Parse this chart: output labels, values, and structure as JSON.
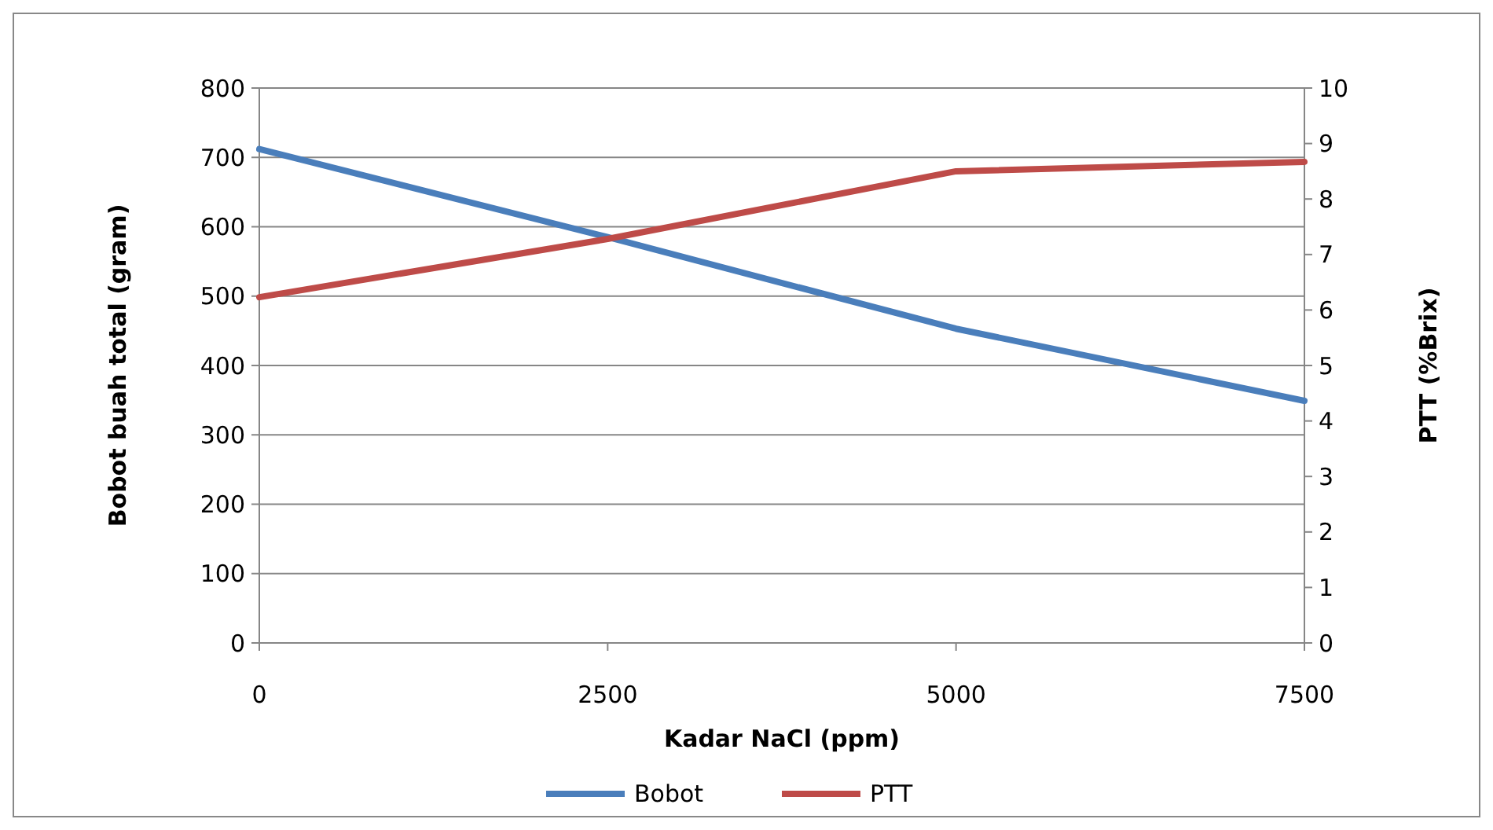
{
  "chart_data": {
    "type": "line",
    "xlabel": "Kadar NaCl (ppm)",
    "ylabel": "Bobot buah total (gram)",
    "y2label": "PTT (%Brix)",
    "x": [
      0,
      2500,
      5000,
      7500
    ],
    "series": [
      {
        "name": "Bobot",
        "color": "#4a7ebb",
        "values": [
          712,
          585,
          453,
          349
        ]
      },
      {
        "name": "PTT",
        "color": "#be4b48",
        "values": [
          6.23,
          7.28,
          8.5,
          8.67
        ],
        "axis": "y2"
      }
    ],
    "xlim": [
      0,
      7500
    ],
    "xticks": [
      0,
      2500,
      5000,
      7500
    ],
    "ylim": [
      0,
      800
    ],
    "yticks": [
      0,
      100,
      200,
      300,
      400,
      500,
      600,
      700,
      800
    ],
    "y2lim": [
      0,
      10
    ],
    "y2ticks": [
      0,
      1,
      2,
      3,
      4,
      5,
      6,
      7,
      8,
      9,
      10
    ],
    "grid": "y",
    "legend": "bottom",
    "marker": "none",
    "line_style": "solid"
  }
}
